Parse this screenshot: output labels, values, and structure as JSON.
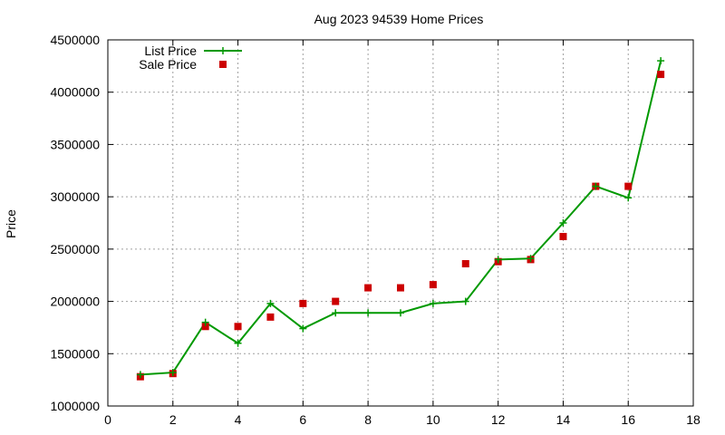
{
  "chart_data": {
    "type": "line",
    "title": "Aug 2023 94539 Home Prices",
    "xlabel": "",
    "ylabel": "Price",
    "xlim": [
      0,
      18
    ],
    "ylim": [
      1000000,
      4500000
    ],
    "x_ticks": [
      0,
      2,
      4,
      6,
      8,
      10,
      12,
      14,
      16,
      18
    ],
    "y_ticks": [
      1000000,
      1500000,
      2000000,
      2500000,
      3000000,
      3500000,
      4000000,
      4500000
    ],
    "grid": true,
    "legend_position": "top-left",
    "x": [
      1,
      2,
      3,
      4,
      5,
      6,
      7,
      8,
      9,
      10,
      11,
      12,
      13,
      14,
      15,
      16,
      17
    ],
    "series": [
      {
        "name": "List Price",
        "style": "line-with-plus-markers",
        "color": "#009900",
        "values": [
          1300000,
          1320000,
          1800000,
          1600000,
          1980000,
          1740000,
          1890000,
          1890000,
          1890000,
          1980000,
          2000000,
          2400000,
          2410000,
          2750000,
          3100000,
          2990000,
          4300000
        ]
      },
      {
        "name": "Sale Price",
        "style": "square-markers",
        "color": "#cc0000",
        "values": [
          1280000,
          1310000,
          1760000,
          1760000,
          1850000,
          1980000,
          2000000,
          2130000,
          2130000,
          2160000,
          2360000,
          2380000,
          2400000,
          2620000,
          3100000,
          3100000,
          4170000
        ]
      }
    ]
  }
}
